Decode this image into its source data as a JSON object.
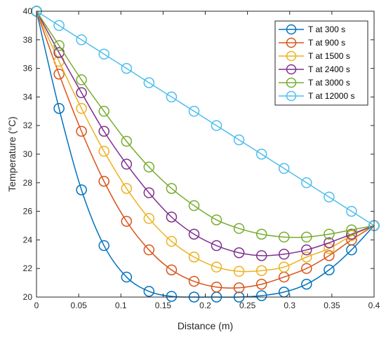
{
  "chart_data": {
    "type": "line",
    "xlabel": "Distance (m)",
    "ylabel": "Temperature (°C)",
    "xlim": [
      0,
      0.4
    ],
    "ylim": [
      20,
      40
    ],
    "xticks": [
      "0",
      "0.05",
      "0.1",
      "0.15",
      "0.2",
      "0.25",
      "0.3",
      "0.35",
      "0.4"
    ],
    "yticks": [
      "20",
      "22",
      "24",
      "26",
      "28",
      "30",
      "32",
      "34",
      "36",
      "38",
      "40"
    ],
    "grid": false,
    "legend_position": "top-right",
    "x": [
      0,
      0.0267,
      0.0533,
      0.08,
      0.1067,
      0.1333,
      0.16,
      0.1867,
      0.2133,
      0.24,
      0.2667,
      0.2933,
      0.32,
      0.3467,
      0.3733,
      0.4
    ],
    "series": [
      {
        "name": "T at 300 s",
        "color": "#0072BD",
        "values": [
          40,
          33.2,
          27.5,
          23.6,
          21.4,
          20.4,
          20.05,
          20.0,
          20.0,
          20.0,
          20.1,
          20.35,
          20.9,
          21.9,
          23.3,
          25
        ]
      },
      {
        "name": "T at 900 s",
        "color": "#D95319",
        "values": [
          40,
          35.6,
          31.6,
          28.1,
          25.3,
          23.3,
          21.9,
          21.1,
          20.7,
          20.65,
          20.9,
          21.4,
          22.0,
          22.9,
          24.0,
          25
        ]
      },
      {
        "name": "T at 1500 s",
        "color": "#EDB120",
        "values": [
          40,
          36.5,
          33.2,
          30.2,
          27.6,
          25.5,
          23.9,
          22.8,
          22.1,
          21.8,
          21.85,
          22.1,
          22.8,
          23.4,
          24.3,
          25
        ]
      },
      {
        "name": "T at 2400 s",
        "color": "#7E2F8E",
        "values": [
          40,
          37.1,
          34.3,
          31.6,
          29.3,
          27.3,
          25.6,
          24.4,
          23.6,
          23.1,
          22.9,
          23.0,
          23.3,
          23.8,
          24.4,
          25
        ]
      },
      {
        "name": "T  at 3000 s",
        "color": "#77AC30",
        "values": [
          40,
          37.6,
          35.2,
          33.0,
          30.9,
          29.1,
          27.6,
          26.4,
          25.4,
          24.8,
          24.4,
          24.2,
          24.2,
          24.4,
          24.7,
          25
        ]
      },
      {
        "name": "T at 12000 s",
        "color": "#4DBEEE",
        "values": [
          40,
          39.0,
          38.0,
          37.0,
          36.0,
          35.0,
          34.0,
          33.0,
          32.0,
          31.0,
          30.0,
          29.0,
          28.0,
          27.0,
          26.0,
          25
        ]
      }
    ]
  }
}
